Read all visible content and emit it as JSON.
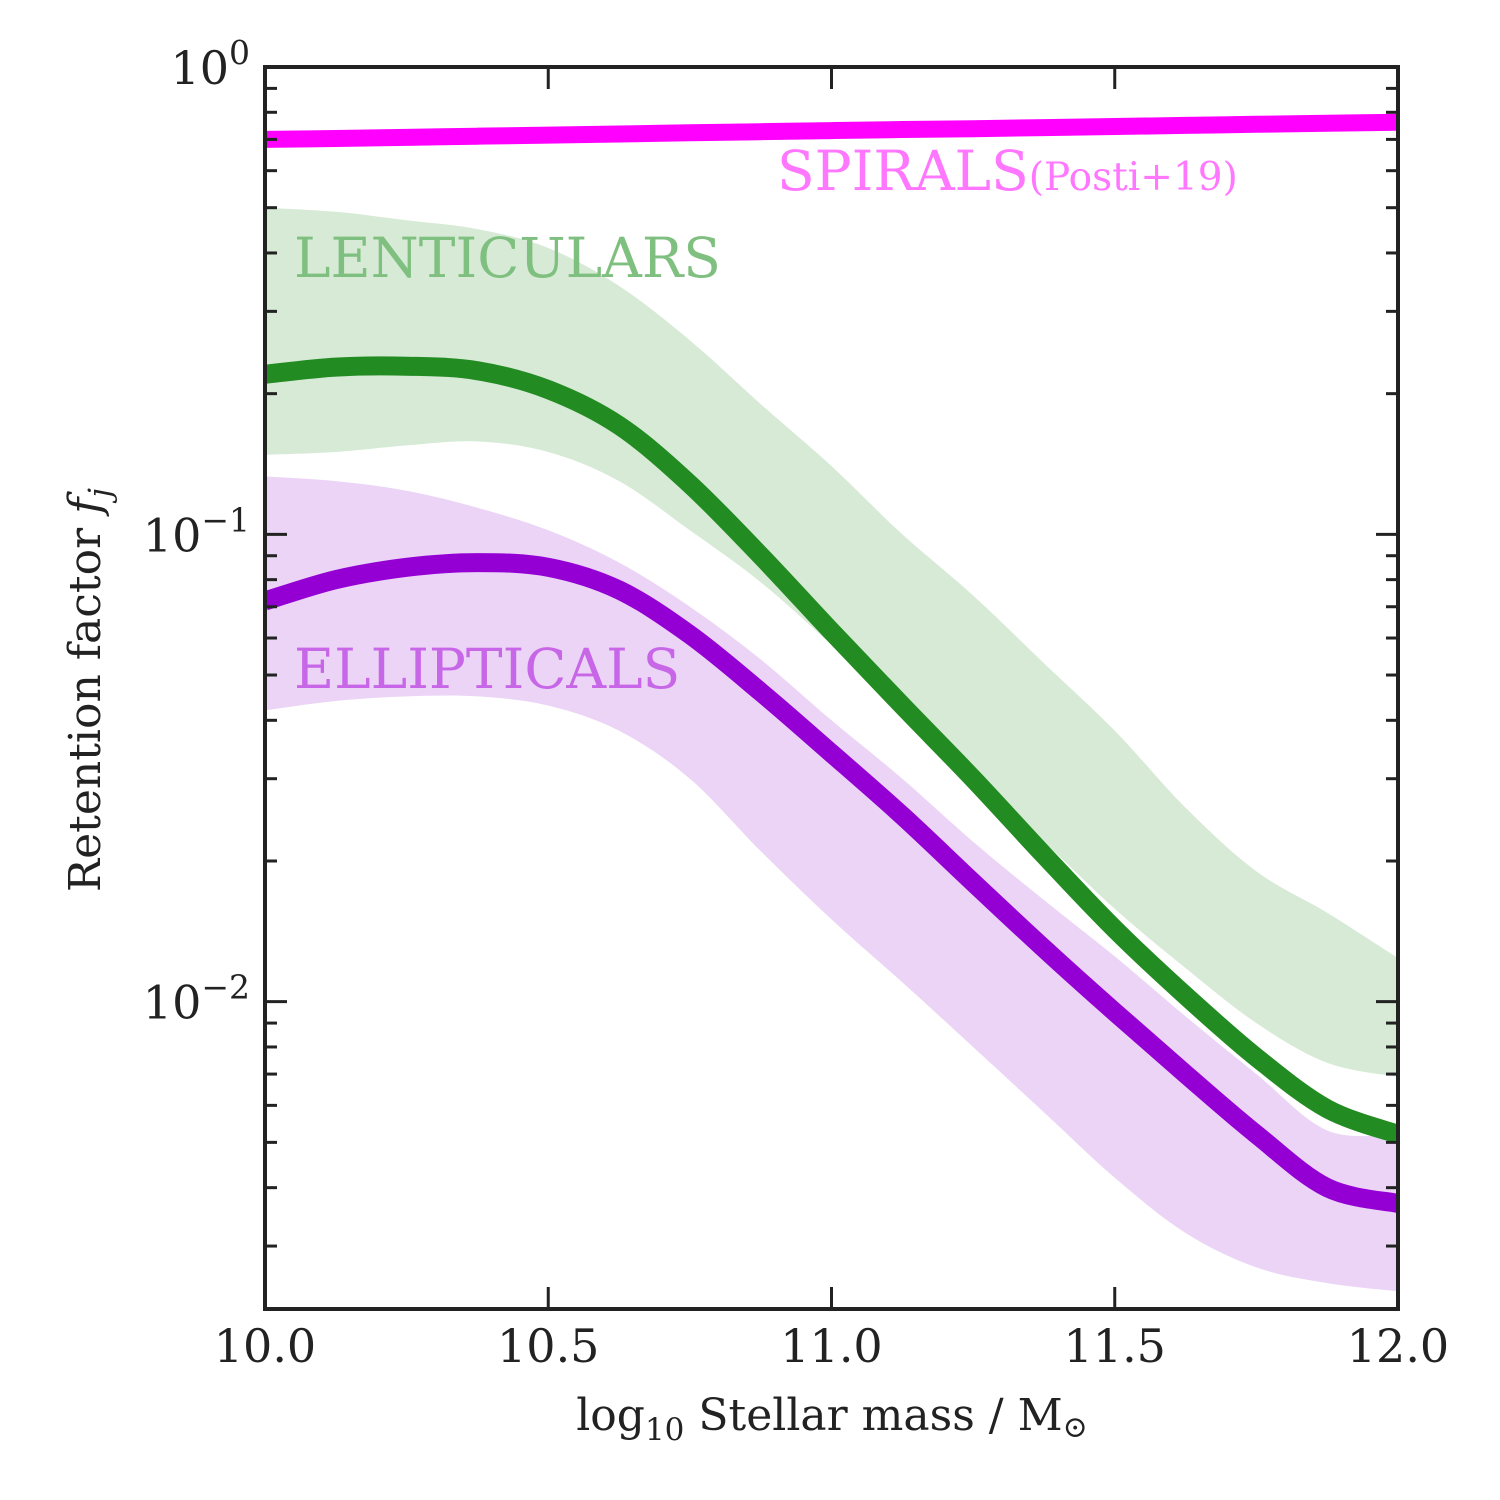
{
  "chart_data": {
    "type": "line",
    "xlabel": {
      "main": "log",
      "sub": "10",
      "rest": " Stellar mass / M",
      "sym": "⊙"
    },
    "ylabel": {
      "main": "Retention factor ",
      "italic": "f",
      "sub": "j"
    },
    "xlim": [
      10.0,
      12.0
    ],
    "ylim": [
      0.0022,
      1.0
    ],
    "yscale": "log",
    "grid": false,
    "x_ticks": [
      10.0,
      10.5,
      11.0,
      11.5,
      12.0
    ],
    "x_tick_labels": [
      "10.0",
      "10.5",
      "11.0",
      "11.5",
      "12.0"
    ],
    "y_ticks": [
      {
        "value": 1.0,
        "base": "10",
        "exp": "0"
      },
      {
        "value": 0.1,
        "base": "10",
        "exp": "−1"
      },
      {
        "value": 0.01,
        "base": "10",
        "exp": "−2"
      }
    ],
    "x": [
      10.0,
      10.125,
      10.25,
      10.375,
      10.5,
      10.625,
      10.75,
      10.875,
      11.0,
      11.125,
      11.25,
      11.375,
      11.5,
      11.625,
      11.75,
      11.875,
      12.0
    ],
    "series": [
      {
        "name": "SPIRALS",
        "name_suffix": "(Posti+19)",
        "color": "#ff00ff",
        "label_color": "#ff77ff",
        "y": [
          0.7,
          0.703,
          0.707,
          0.711,
          0.715,
          0.719,
          0.723,
          0.727,
          0.731,
          0.735,
          0.738,
          0.742,
          0.746,
          0.75,
          0.754,
          0.758,
          0.762
        ]
      },
      {
        "name": "LENTICULARS",
        "color": "#228b22",
        "label_color": "#7fbf7f",
        "band_color": "#cfe6cf",
        "y": [
          0.22,
          0.228,
          0.229,
          0.224,
          0.204,
          0.171,
          0.128,
          0.09,
          0.062,
          0.043,
          0.03,
          0.0206,
          0.0143,
          0.0103,
          0.0076,
          0.0059,
          0.0052
        ],
        "lower": [
          0.148,
          0.15,
          0.155,
          0.158,
          0.15,
          0.13,
          0.102,
          0.079,
          0.058,
          0.042,
          0.03,
          0.022,
          0.0158,
          0.0118,
          0.009,
          0.0074,
          0.0069
        ],
        "upper": [
          0.5,
          0.49,
          0.47,
          0.45,
          0.41,
          0.34,
          0.26,
          0.19,
          0.14,
          0.1,
          0.074,
          0.053,
          0.038,
          0.026,
          0.019,
          0.0155,
          0.0124
        ]
      },
      {
        "name": "ELLIPTICALS",
        "color": "#9400d3",
        "label_color": "#c866e8",
        "band_color": "#e8ccf5",
        "y": [
          0.072,
          0.08,
          0.085,
          0.087,
          0.085,
          0.076,
          0.061,
          0.046,
          0.034,
          0.025,
          0.018,
          0.013,
          0.0095,
          0.007,
          0.0052,
          0.004,
          0.0037
        ],
        "lower": [
          0.042,
          0.044,
          0.045,
          0.045,
          0.043,
          0.038,
          0.03,
          0.021,
          0.015,
          0.011,
          0.008,
          0.0058,
          0.0042,
          0.0032,
          0.0027,
          0.0025,
          0.0024
        ],
        "upper": [
          0.133,
          0.13,
          0.124,
          0.114,
          0.102,
          0.087,
          0.07,
          0.054,
          0.04,
          0.03,
          0.022,
          0.0165,
          0.0125,
          0.0093,
          0.007,
          0.0053,
          0.0052
        ]
      }
    ]
  }
}
